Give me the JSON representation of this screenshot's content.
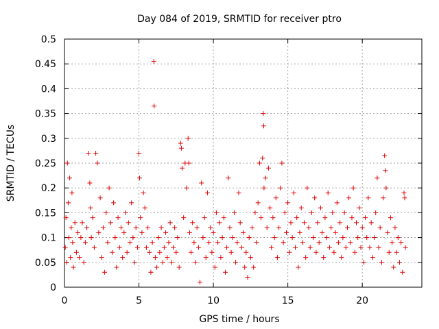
{
  "chart_data": {
    "type": "scatter",
    "title": "Day 084 of 2019, SRMTID for receiver ptro",
    "xlabel": "GPS time / hours",
    "ylabel": "SRMTID / TECUs",
    "xlim": [
      0,
      24
    ],
    "ylim": [
      0,
      0.5
    ],
    "x_ticks": [
      0,
      5,
      10,
      15,
      20
    ],
    "x_tick_labels": [
      "0",
      "5",
      "10",
      "15",
      "20"
    ],
    "y_ticks": [
      0,
      0.05,
      0.1,
      0.15,
      0.2,
      0.25,
      0.3,
      0.35,
      0.4,
      0.45,
      0.5
    ],
    "y_tick_labels": [
      "0",
      "0.05",
      "0.1",
      "0.15",
      "0.2",
      "0.25",
      "0.3",
      "0.35",
      "0.4",
      "0.45",
      "0.5"
    ],
    "grid": true,
    "marker": "+",
    "marker_color": "#e00000",
    "series": [
      {
        "name": "SRMTID",
        "points": [
          [
            0.05,
            0.08
          ],
          [
            0.1,
            0.14
          ],
          [
            0.15,
            0.05
          ],
          [
            0.2,
            0.25
          ],
          [
            0.25,
            0.17
          ],
          [
            0.3,
            0.1
          ],
          [
            0.35,
            0.22
          ],
          [
            0.4,
            0.06
          ],
          [
            0.45,
            0.12
          ],
          [
            0.5,
            0.19
          ],
          [
            0.55,
            0.09
          ],
          [
            0.6,
            0.04
          ],
          [
            0.7,
            0.13
          ],
          [
            0.8,
            0.07
          ],
          [
            0.9,
            0.11
          ],
          [
            1.0,
            0.06
          ],
          [
            1.1,
            0.1
          ],
          [
            1.2,
            0.13
          ],
          [
            1.3,
            0.05
          ],
          [
            1.4,
            0.09
          ],
          [
            1.5,
            0.12
          ],
          [
            1.6,
            0.27
          ],
          [
            1.7,
            0.21
          ],
          [
            1.75,
            0.16
          ],
          [
            1.8,
            0.1
          ],
          [
            1.9,
            0.14
          ],
          [
            2.0,
            0.08
          ],
          [
            2.1,
            0.27
          ],
          [
            2.2,
            0.25
          ],
          [
            2.3,
            0.11
          ],
          [
            2.4,
            0.18
          ],
          [
            2.5,
            0.06
          ],
          [
            2.6,
            0.12
          ],
          [
            2.7,
            0.03
          ],
          [
            2.8,
            0.15
          ],
          [
            2.9,
            0.09
          ],
          [
            3.0,
            0.2
          ],
          [
            3.1,
            0.13
          ],
          [
            3.2,
            0.07
          ],
          [
            3.3,
            0.17
          ],
          [
            3.4,
            0.1
          ],
          [
            3.5,
            0.04
          ],
          [
            3.6,
            0.14
          ],
          [
            3.7,
            0.08
          ],
          [
            3.8,
            0.12
          ],
          [
            3.9,
            0.06
          ],
          [
            4.0,
            0.11
          ],
          [
            4.1,
            0.15
          ],
          [
            4.2,
            0.07
          ],
          [
            4.3,
            0.13
          ],
          [
            4.4,
            0.09
          ],
          [
            4.5,
            0.17
          ],
          [
            4.6,
            0.1
          ],
          [
            4.7,
            0.05
          ],
          [
            4.8,
            0.12
          ],
          [
            4.9,
            0.08
          ],
          [
            5.0,
            0.27
          ],
          [
            5.05,
            0.22
          ],
          [
            5.1,
            0.14
          ],
          [
            5.2,
            0.11
          ],
          [
            5.3,
            0.19
          ],
          [
            5.4,
            0.16
          ],
          [
            5.5,
            0.08
          ],
          [
            5.6,
            0.12
          ],
          [
            5.7,
            0.07
          ],
          [
            5.8,
            0.03
          ],
          [
            5.9,
            0.09
          ],
          [
            6.0,
            0.455
          ],
          [
            6.02,
            0.365
          ],
          [
            6.1,
            0.06
          ],
          [
            6.2,
            0.04
          ],
          [
            6.3,
            0.1
          ],
          [
            6.4,
            0.07
          ],
          [
            6.5,
            0.12
          ],
          [
            6.6,
            0.05
          ],
          [
            6.7,
            0.08
          ],
          [
            6.8,
            0.11
          ],
          [
            6.9,
            0.06
          ],
          [
            7.0,
            0.09
          ],
          [
            7.1,
            0.13
          ],
          [
            7.2,
            0.05
          ],
          [
            7.3,
            0.08
          ],
          [
            7.4,
            0.12
          ],
          [
            7.5,
            0.07
          ],
          [
            7.6,
            0.1
          ],
          [
            7.7,
            0.04
          ],
          [
            7.8,
            0.29
          ],
          [
            7.85,
            0.28
          ],
          [
            7.9,
            0.24
          ],
          [
            8.0,
            0.14
          ],
          [
            8.1,
            0.25
          ],
          [
            8.2,
            0.2
          ],
          [
            8.3,
            0.3
          ],
          [
            8.35,
            0.25
          ],
          [
            8.4,
            0.11
          ],
          [
            8.5,
            0.07
          ],
          [
            8.6,
            0.13
          ],
          [
            8.7,
            0.09
          ],
          [
            8.8,
            0.05
          ],
          [
            8.9,
            0.12
          ],
          [
            9.0,
            0.08
          ],
          [
            9.1,
            0.01
          ],
          [
            9.2,
            0.21
          ],
          [
            9.3,
            0.1
          ],
          [
            9.4,
            0.14
          ],
          [
            9.5,
            0.06
          ],
          [
            9.6,
            0.19
          ],
          [
            9.7,
            0.09
          ],
          [
            9.8,
            0.12
          ],
          [
            9.9,
            0.07
          ],
          [
            10.0,
            0.11
          ],
          [
            10.1,
            0.04
          ],
          [
            10.2,
            0.15
          ],
          [
            10.3,
            0.09
          ],
          [
            10.4,
            0.13
          ],
          [
            10.5,
            0.06
          ],
          [
            10.6,
            0.1
          ],
          [
            10.7,
            0.14
          ],
          [
            10.8,
            0.03
          ],
          [
            10.9,
            0.08
          ],
          [
            11.0,
            0.22
          ],
          [
            11.1,
            0.12
          ],
          [
            11.2,
            0.07
          ],
          [
            11.3,
            0.1
          ],
          [
            11.4,
            0.15
          ],
          [
            11.5,
            0.05
          ],
          [
            11.6,
            0.09
          ],
          [
            11.7,
            0.19
          ],
          [
            11.8,
            0.13
          ],
          [
            11.9,
            0.08
          ],
          [
            12.0,
            0.11
          ],
          [
            12.1,
            0.04
          ],
          [
            12.2,
            0.07
          ],
          [
            12.3,
            0.02
          ],
          [
            12.4,
            0.1
          ],
          [
            12.5,
            0.06
          ],
          [
            12.6,
            0.12
          ],
          [
            12.7,
            0.04
          ],
          [
            12.8,
            0.15
          ],
          [
            12.9,
            0.09
          ],
          [
            13.0,
            0.17
          ],
          [
            13.1,
            0.25
          ],
          [
            13.2,
            0.14
          ],
          [
            13.3,
            0.26
          ],
          [
            13.35,
            0.35
          ],
          [
            13.38,
            0.325
          ],
          [
            13.4,
            0.2
          ],
          [
            13.5,
            0.22
          ],
          [
            13.6,
            0.12
          ],
          [
            13.7,
            0.24
          ],
          [
            13.8,
            0.16
          ],
          [
            13.9,
            0.08
          ],
          [
            14.0,
            0.14
          ],
          [
            14.1,
            0.1
          ],
          [
            14.2,
            0.18
          ],
          [
            14.3,
            0.06
          ],
          [
            14.4,
            0.12
          ],
          [
            14.5,
            0.2
          ],
          [
            14.6,
            0.25
          ],
          [
            14.7,
            0.09
          ],
          [
            14.8,
            0.15
          ],
          [
            14.9,
            0.11
          ],
          [
            15.0,
            0.17
          ],
          [
            15.1,
            0.07
          ],
          [
            15.2,
            0.13
          ],
          [
            15.3,
            0.1
          ],
          [
            15.4,
            0.19
          ],
          [
            15.5,
            0.08
          ],
          [
            15.6,
            0.14
          ],
          [
            15.7,
            0.04
          ],
          [
            15.8,
            0.11
          ],
          [
            15.9,
            0.16
          ],
          [
            16.0,
            0.09
          ],
          [
            16.1,
            0.13
          ],
          [
            16.2,
            0.06
          ],
          [
            16.3,
            0.2
          ],
          [
            16.4,
            0.12
          ],
          [
            16.5,
            0.08
          ],
          [
            16.6,
            0.15
          ],
          [
            16.7,
            0.1
          ],
          [
            16.8,
            0.18
          ],
          [
            16.9,
            0.07
          ],
          [
            17.0,
            0.13
          ],
          [
            17.1,
            0.09
          ],
          [
            17.2,
            0.16
          ],
          [
            17.3,
            0.11
          ],
          [
            17.4,
            0.06
          ],
          [
            17.5,
            0.14
          ],
          [
            17.6,
            0.1
          ],
          [
            17.7,
            0.19
          ],
          [
            17.8,
            0.08
          ],
          [
            17.9,
            0.12
          ],
          [
            18.0,
            0.15
          ],
          [
            18.1,
            0.07
          ],
          [
            18.2,
            0.11
          ],
          [
            18.3,
            0.17
          ],
          [
            18.4,
            0.09
          ],
          [
            18.5,
            0.13
          ],
          [
            18.6,
            0.06
          ],
          [
            18.7,
            0.1
          ],
          [
            18.8,
            0.15
          ],
          [
            18.9,
            0.08
          ],
          [
            19.0,
            0.12
          ],
          [
            19.1,
            0.18
          ],
          [
            19.2,
            0.09
          ],
          [
            19.3,
            0.14
          ],
          [
            19.4,
            0.2
          ],
          [
            19.5,
            0.07
          ],
          [
            19.6,
            0.13
          ],
          [
            19.7,
            0.1
          ],
          [
            19.8,
            0.16
          ],
          [
            19.9,
            0.08
          ],
          [
            20.0,
            0.12
          ],
          [
            20.1,
            0.05
          ],
          [
            20.2,
            0.14
          ],
          [
            20.3,
            0.1
          ],
          [
            20.4,
            0.18
          ],
          [
            20.5,
            0.08
          ],
          [
            20.6,
            0.13
          ],
          [
            20.7,
            0.06
          ],
          [
            20.8,
            0.1
          ],
          [
            20.9,
            0.15
          ],
          [
            21.0,
            0.22
          ],
          [
            21.1,
            0.08
          ],
          [
            21.2,
            0.12
          ],
          [
            21.3,
            0.05
          ],
          [
            21.4,
            0.18
          ],
          [
            21.5,
            0.265
          ],
          [
            21.55,
            0.235
          ],
          [
            21.6,
            0.2
          ],
          [
            21.7,
            0.11
          ],
          [
            21.8,
            0.07
          ],
          [
            21.9,
            0.14
          ],
          [
            22.0,
            0.09
          ],
          [
            22.1,
            0.04
          ],
          [
            22.2,
            0.12
          ],
          [
            22.3,
            0.07
          ],
          [
            22.4,
            0.1
          ],
          [
            22.5,
            0.05
          ],
          [
            22.6,
            0.09
          ],
          [
            22.7,
            0.03
          ],
          [
            22.8,
            0.19
          ],
          [
            22.85,
            0.18
          ],
          [
            22.9,
            0.08
          ]
        ]
      }
    ]
  }
}
